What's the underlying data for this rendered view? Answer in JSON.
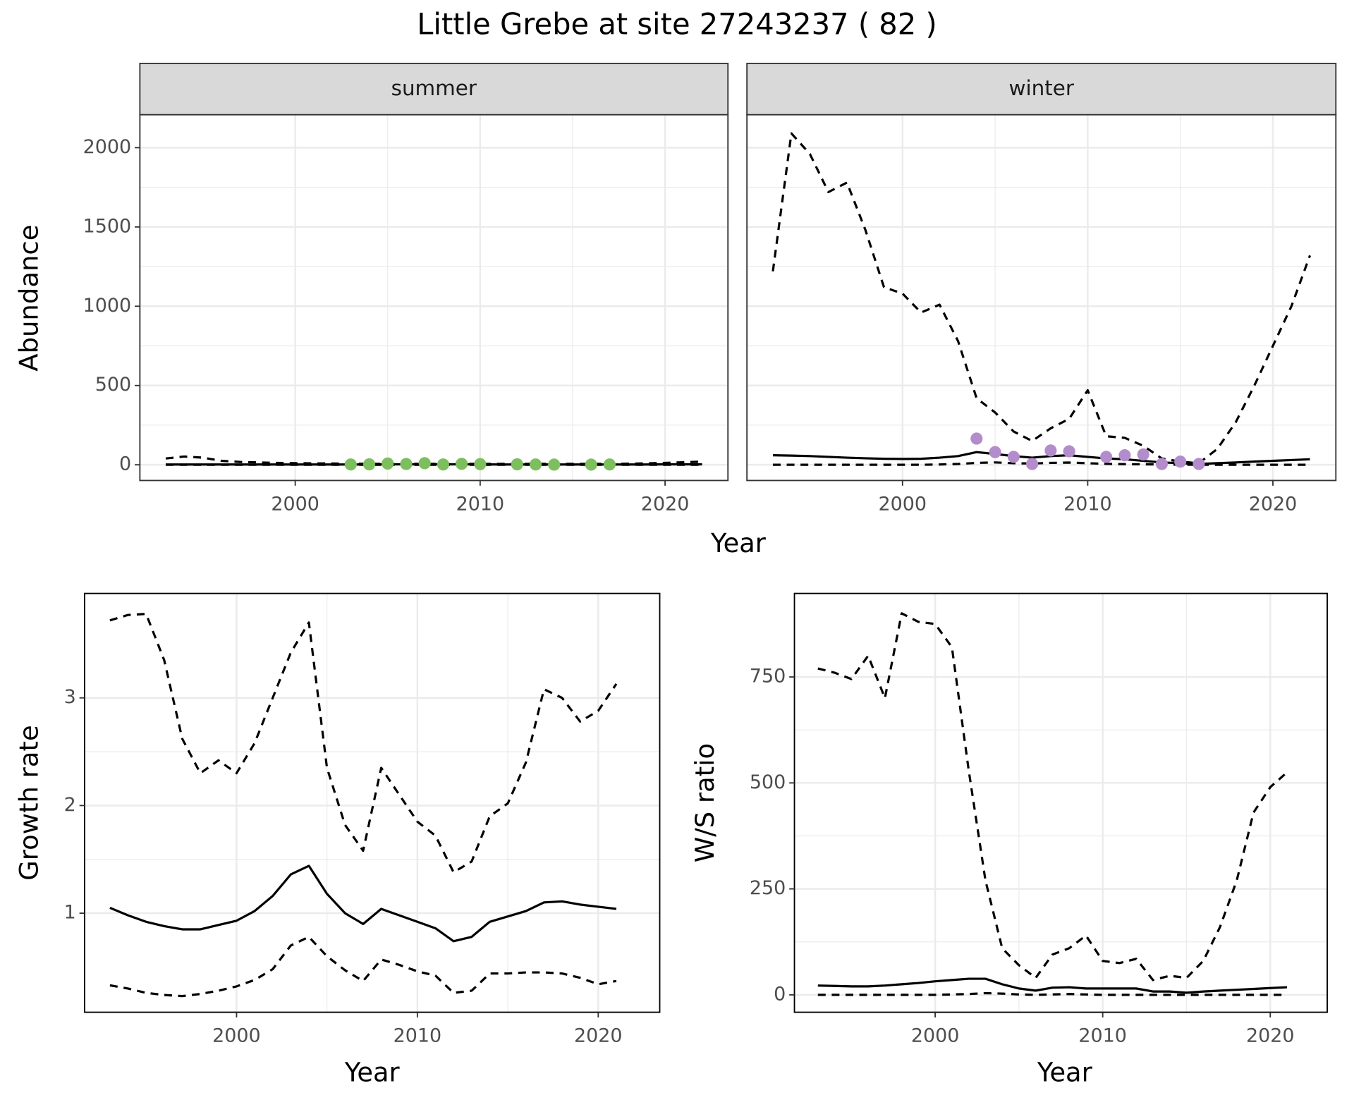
{
  "chart_data": [
    {
      "type": "line",
      "title": "Little Grebe at site 27243237 ( 82 )",
      "x_label": "Year",
      "y_label": "Abundance",
      "xlim": [
        1991.6,
        2023.4
      ],
      "xticks": [
        2000,
        2010,
        2020
      ],
      "ylim": [
        -99,
        2208
      ],
      "yticks": [
        0,
        500,
        1000,
        1500,
        2000
      ],
      "grid": true,
      "panels": [
        {
          "strip": "summer",
          "x": [
            1993,
            1994,
            1995,
            1996,
            1997,
            1998,
            1999,
            2000,
            2001,
            2002,
            2003,
            2004,
            2005,
            2006,
            2007,
            2008,
            2009,
            2010,
            2011,
            2012,
            2013,
            2014,
            2015,
            2016,
            2017,
            2018,
            2019,
            2020,
            2021,
            2022
          ],
          "series": [
            {
              "linetype": "solid",
              "color": "#000000",
              "values": [
                2,
                2,
                2,
                2,
                2,
                2,
                2,
                2,
                2,
                2,
                2,
                2,
                3,
                3,
                3,
                3,
                3,
                3,
                2,
                2,
                2,
                2,
                2,
                2,
                2,
                2,
                2,
                3,
                3,
                3
              ]
            },
            {
              "linetype": "dashed",
              "color": "#000000",
              "values": [
                40,
                52,
                45,
                25,
                18,
                15,
                12,
                10,
                9,
                8,
                7,
                6,
                6,
                6,
                6,
                6,
                6,
                6,
                6,
                6,
                6,
                6,
                6,
                6,
                6,
                7,
                9,
                12,
                16,
                20
              ]
            },
            {
              "linetype": "dashed",
              "color": "#000000",
              "values": [
                0,
                0,
                0,
                0,
                0,
                0,
                0,
                0,
                0,
                0,
                0,
                0,
                0,
                0,
                0,
                0,
                0,
                0,
                0,
                0,
                0,
                0,
                0,
                0,
                0,
                0,
                0,
                0,
                0,
                0
              ]
            },
            {
              "linetype": "points",
              "color": "#7dbf5e",
              "x": [
                2003,
                2004,
                2005,
                2006,
                2007,
                2008,
                2009,
                2010,
                2012,
                2013,
                2014,
                2016,
                2017
              ],
              "values": [
                2,
                3,
                8,
                5,
                10,
                2,
                6,
                4,
                3,
                2,
                1,
                1,
                2
              ]
            }
          ]
        },
        {
          "strip": "winter",
          "x": [
            1993,
            1994,
            1995,
            1996,
            1997,
            1998,
            1999,
            2000,
            2001,
            2002,
            2003,
            2004,
            2005,
            2006,
            2007,
            2008,
            2009,
            2010,
            2011,
            2012,
            2013,
            2014,
            2015,
            2016,
            2017,
            2018,
            2019,
            2020,
            2021,
            2022
          ],
          "series": [
            {
              "linetype": "solid",
              "color": "#000000",
              "values": [
                60,
                58,
                55,
                50,
                45,
                41,
                38,
                37,
                38,
                45,
                55,
                80,
                68,
                55,
                45,
                55,
                60,
                50,
                40,
                35,
                25,
                15,
                10,
                5,
                10,
                15,
                20,
                25,
                30,
                35
              ]
            },
            {
              "linetype": "dashed",
              "color": "#000000",
              "values": [
                1220,
                2090,
                1960,
                1720,
                1780,
                1480,
                1120,
                1080,
                960,
                1010,
                780,
                420,
                330,
                210,
                150,
                230,
                290,
                470,
                180,
                170,
                120,
                40,
                20,
                10,
                100,
                270,
                500,
                750,
                1000,
                1320
              ]
            },
            {
              "linetype": "dashed",
              "color": "#000000",
              "values": [
                0,
                0,
                0,
                0,
                0,
                0,
                0,
                0,
                0,
                2,
                5,
                12,
                15,
                10,
                8,
                12,
                14,
                10,
                6,
                4,
                3,
                2,
                1,
                0,
                0,
                0,
                0,
                0,
                0,
                0
              ]
            },
            {
              "linetype": "points",
              "color": "#b38ccc",
              "x": [
                2004,
                2005,
                2006,
                2007,
                2008,
                2009,
                2011,
                2012,
                2013,
                2014,
                2015,
                2016
              ],
              "values": [
                165,
                80,
                50,
                5,
                90,
                85,
                50,
                60,
                65,
                5,
                20,
                5
              ]
            }
          ]
        }
      ]
    },
    {
      "type": "line",
      "x_label": "Year",
      "y_label": "Growth rate",
      "xlim": [
        1991.6,
        2023.4
      ],
      "xticks": [
        2000,
        2010,
        2020
      ],
      "ylim": [
        0.08,
        3.97
      ],
      "yticks": [
        1,
        2,
        3
      ],
      "grid": true,
      "panels": [
        {
          "x": [
            1993,
            1994,
            1995,
            1996,
            1997,
            1998,
            1999,
            2000,
            2001,
            2002,
            2003,
            2004,
            2005,
            2006,
            2007,
            2008,
            2009,
            2010,
            2011,
            2012,
            2013,
            2014,
            2015,
            2016,
            2017,
            2018,
            2019,
            2020,
            2021
          ],
          "series": [
            {
              "linetype": "solid",
              "color": "#000000",
              "values": [
                1.05,
                0.98,
                0.92,
                0.88,
                0.85,
                0.85,
                0.89,
                0.93,
                1.02,
                1.16,
                1.36,
                1.44,
                1.18,
                1.0,
                0.9,
                1.04,
                0.98,
                0.92,
                0.86,
                0.74,
                0.78,
                0.92,
                0.97,
                1.02,
                1.1,
                1.11,
                1.08,
                1.06,
                1.04
              ]
            },
            {
              "linetype": "dashed",
              "color": "#000000",
              "values": [
                3.72,
                3.77,
                3.78,
                3.35,
                2.62,
                2.3,
                2.42,
                2.3,
                2.58,
                3.0,
                3.42,
                3.7,
                2.35,
                1.82,
                1.58,
                2.35,
                2.1,
                1.85,
                1.72,
                1.38,
                1.48,
                1.9,
                2.02,
                2.4,
                3.08,
                3.0,
                2.78,
                2.88,
                3.13
              ]
            },
            {
              "linetype": "dashed",
              "color": "#000000",
              "values": [
                0.33,
                0.3,
                0.26,
                0.24,
                0.23,
                0.25,
                0.28,
                0.32,
                0.38,
                0.48,
                0.7,
                0.78,
                0.6,
                0.47,
                0.37,
                0.57,
                0.52,
                0.46,
                0.42,
                0.26,
                0.28,
                0.44,
                0.44,
                0.45,
                0.45,
                0.44,
                0.4,
                0.34,
                0.37
              ]
            }
          ]
        }
      ]
    },
    {
      "type": "line",
      "x_label": "Year",
      "y_label": "W/S ratio",
      "xlim": [
        1991.6,
        2023.4
      ],
      "xticks": [
        2000,
        2010,
        2020
      ],
      "ylim": [
        -41,
        947
      ],
      "yticks": [
        0,
        250,
        500,
        750
      ],
      "grid": true,
      "panels": [
        {
          "x": [
            1993,
            1994,
            1995,
            1996,
            1997,
            1998,
            1999,
            2000,
            2001,
            2002,
            2003,
            2004,
            2005,
            2006,
            2007,
            2008,
            2009,
            2010,
            2011,
            2012,
            2013,
            2014,
            2015,
            2016,
            2017,
            2018,
            2019,
            2020,
            2021
          ],
          "series": [
            {
              "linetype": "solid",
              "color": "#000000",
              "values": [
                22,
                21,
                20,
                20,
                22,
                25,
                28,
                32,
                35,
                38,
                38,
                25,
                15,
                10,
                17,
                18,
                15,
                15,
                15,
                15,
                8,
                8,
                5,
                8,
                10,
                12,
                14,
                16,
                18
              ]
            },
            {
              "linetype": "dashed",
              "color": "#000000",
              "values": [
                770,
                760,
                745,
                800,
                700,
                900,
                880,
                875,
                820,
                530,
                270,
                110,
                70,
                40,
                95,
                110,
                140,
                80,
                75,
                85,
                35,
                45,
                40,
                80,
                160,
                270,
                430,
                490,
                525
              ]
            },
            {
              "linetype": "dashed",
              "color": "#000000",
              "values": [
                0,
                0,
                0,
                0,
                0,
                0,
                0,
                0,
                1,
                2,
                4,
                3,
                1,
                0,
                1,
                2,
                1,
                0,
                0,
                0,
                0,
                0,
                0,
                0,
                0,
                0,
                0,
                0,
                0
              ]
            }
          ]
        }
      ]
    }
  ]
}
